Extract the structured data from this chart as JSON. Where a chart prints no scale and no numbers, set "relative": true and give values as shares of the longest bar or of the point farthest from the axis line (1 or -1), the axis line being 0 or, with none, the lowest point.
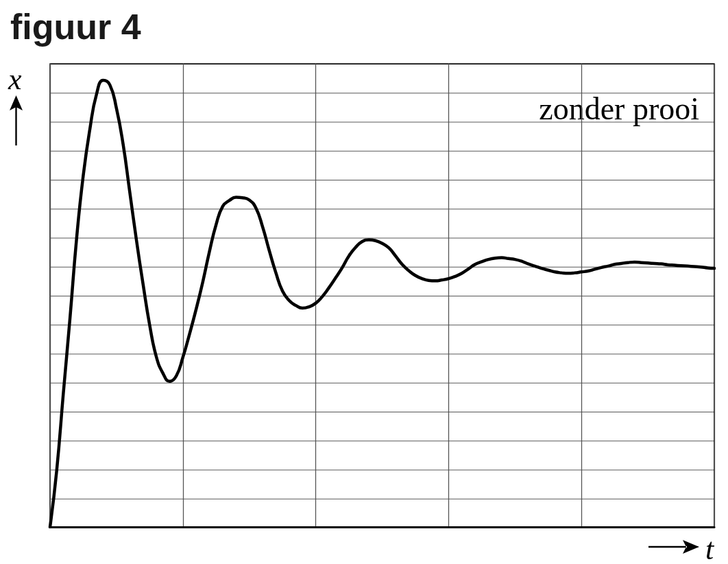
{
  "chart_data": {
    "type": "line",
    "title": "figuur 4",
    "xlabel": "t",
    "ylabel": "x",
    "annotations": [
      "zonder prooi"
    ],
    "categories": [
      null,
      null,
      null,
      null,
      null,
      null,
      null,
      null,
      null,
      null,
      null,
      null,
      null,
      null,
      null,
      null,
      null,
      null,
      null,
      null,
      null,
      null,
      null,
      null,
      null,
      null,
      null,
      null,
      null,
      null,
      null,
      null,
      null,
      null,
      null,
      null,
      null,
      null,
      null,
      null,
      null,
      null,
      null,
      null,
      null,
      null,
      null,
      null,
      null,
      null,
      null,
      null,
      null,
      null,
      null,
      null,
      null,
      null,
      null,
      null,
      null,
      null,
      null,
      null,
      null,
      null,
      null,
      null,
      null,
      null,
      null,
      null,
      null,
      null,
      null,
      null,
      null,
      null,
      null,
      null,
      null,
      null,
      null,
      null,
      null,
      null,
      null,
      null,
      null,
      null,
      null,
      null,
      null,
      null,
      null,
      null,
      null,
      null,
      null,
      null,
      null
    ],
    "values": [
      0,
      0.126,
      0.299,
      0.467,
      0.646,
      0.787,
      0.891,
      0.969,
      1,
      0.99,
      0.937,
      0.857,
      0.75,
      0.643,
      0.544,
      0.452,
      0.381,
      0.344,
      0.326,
      0.338,
      0.38,
      0.432,
      0.488,
      0.549,
      0.617,
      0.677,
      0.718,
      0.731,
      0.738,
      0.737,
      0.732,
      0.714,
      0.672,
      0.619,
      0.569,
      0.528,
      0.507,
      0.496,
      0.49,
      0.493,
      0.501,
      0.516,
      0.536,
      0.558,
      0.581,
      0.607,
      0.626,
      0.639,
      0.643,
      0.641,
      0.635,
      0.625,
      0.607,
      0.588,
      0.574,
      0.563,
      0.556,
      0.552,
      0.551,
      0.553,
      0.556,
      0.561,
      0.568,
      0.578,
      0.588,
      0.594,
      0.599,
      0.602,
      0.603,
      0.601,
      0.599,
      0.595,
      0.589,
      0.584,
      0.579,
      0.575,
      0.571,
      0.569,
      0.568,
      0.569,
      0.571,
      0.573,
      0.577,
      0.581,
      0.584,
      0.588,
      0.59,
      0.592,
      0.593,
      0.592,
      0.591,
      0.59,
      0.589,
      0.587,
      0.586,
      0.585,
      0.584,
      0.583,
      0.582,
      0.58,
      0.579
    ],
    "color": "#000000",
    "relative": true,
    "grid": true
  }
}
